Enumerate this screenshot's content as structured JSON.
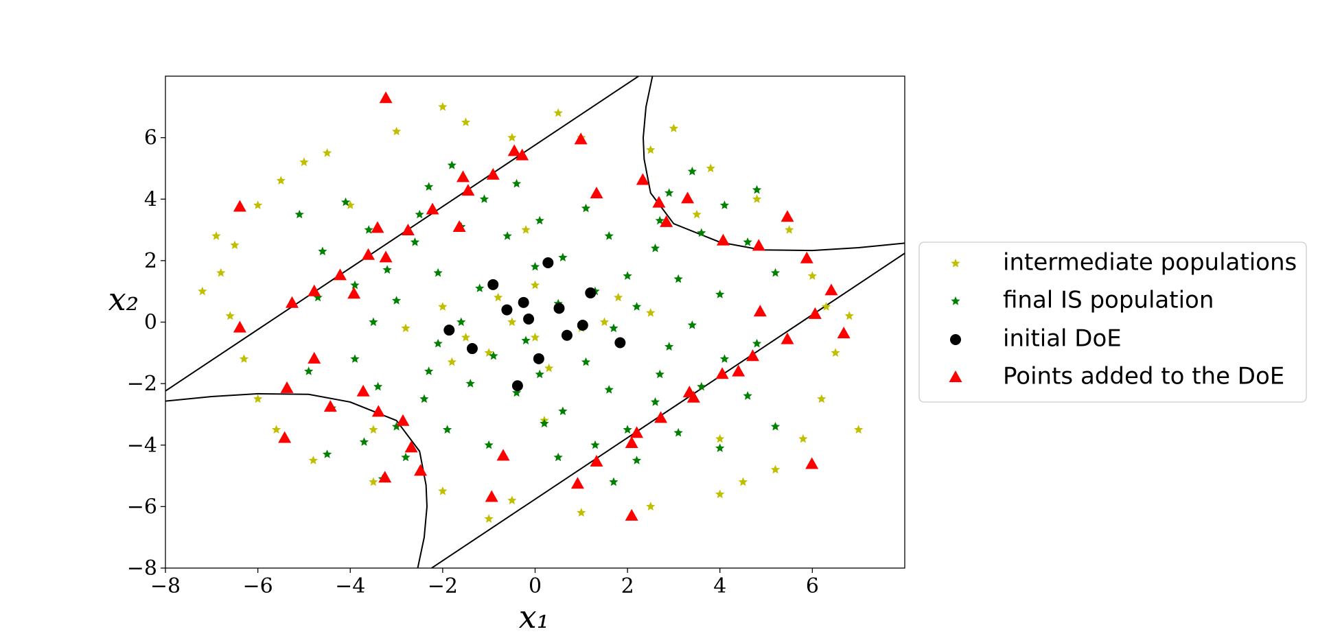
{
  "chart_data": {
    "type": "scatter",
    "xlabel": "x₁",
    "ylabel": "x₂",
    "xlim": [
      -8,
      8
    ],
    "ylim": [
      -8,
      8
    ],
    "xticks": [
      {
        "value": -8,
        "label": "−8"
      },
      {
        "value": -6,
        "label": "−6"
      },
      {
        "value": -4,
        "label": "−4"
      },
      {
        "value": -2,
        "label": "−2"
      },
      0,
      2,
      4,
      6
    ],
    "yticks": [
      {
        "value": -8,
        "label": "−8"
      },
      {
        "value": -6,
        "label": "−6"
      },
      {
        "value": -4,
        "label": "−4"
      },
      {
        "value": -2,
        "label": "−2"
      },
      0,
      2,
      4,
      6
    ],
    "legend": "right",
    "series": [
      {
        "name": "intermediate populations",
        "color": "#bfbf00",
        "marker": "star",
        "x": [
          -6.5,
          -6.8,
          -6.0,
          -5.5,
          -4.5,
          -3.0,
          -1.5,
          -0.5,
          1.0,
          2.5,
          3.8,
          4.8,
          5.5,
          6.0,
          6.3,
          6.5,
          6.2,
          5.8,
          5.2,
          4.0,
          2.5,
          1.0,
          -0.5,
          -2.0,
          -3.5,
          -4.8,
          -5.6,
          -6.0,
          -6.3,
          -6.6,
          -7.2,
          -6.9,
          7.0,
          6.8,
          -5.0,
          3.0,
          -1.0,
          4.5,
          -2.0,
          0.5,
          -1.5,
          -1.0,
          -0.5,
          0.0,
          0.5,
          1.0,
          -2.0,
          1.5,
          -0.8,
          0.3,
          0.0,
          -1.8,
          1.8,
          2.5,
          -2.8,
          -0.2,
          0.2,
          -4.0,
          4.0,
          3.5,
          -3.5
        ],
        "y": [
          2.5,
          1.6,
          3.8,
          4.6,
          5.5,
          6.2,
          6.5,
          6.0,
          6.0,
          5.6,
          5.0,
          4.0,
          3.0,
          1.5,
          0.5,
          -1.0,
          -2.5,
          -3.8,
          -4.8,
          -5.6,
          -6.0,
          -6.2,
          -5.8,
          -5.5,
          -5.2,
          -4.5,
          -3.5,
          -2.5,
          -1.2,
          0.2,
          1.0,
          2.8,
          -3.5,
          0.2,
          5.2,
          6.3,
          -6.4,
          -5.2,
          7.0,
          6.8,
          -0.5,
          -1.0,
          0.0,
          -0.5,
          0.5,
          -0.2,
          0.5,
          0.0,
          0.8,
          -1.5,
          1.2,
          -1.3,
          0.8,
          0.3,
          -0.2,
          3.0,
          -3.2,
          3.8,
          -3.8,
          3.5,
          -3.5
        ]
      },
      {
        "name": "final IS population",
        "color": "#008000",
        "marker": "star",
        "x": [
          -2.6,
          -1.6,
          -3.6,
          -2.1,
          -3.2,
          -0.6,
          -4.6,
          -2.3,
          -3.0,
          -1.1,
          -4.1,
          -1.2,
          -3.9,
          0.0,
          -5.1,
          -1.8,
          -3.5,
          -0.4,
          -4.7,
          -2.5,
          2.6,
          3.6,
          1.6,
          3.1,
          2.0,
          4.6,
          0.6,
          2.9,
          2.2,
          4.1,
          1.1,
          4.0,
          1.3,
          5.2,
          0.1,
          3.4,
          1.7,
          4.8,
          0.5,
          2.7,
          -2.4,
          -1.4,
          -3.4,
          -1.9,
          -3.0,
          -0.4,
          -4.4,
          -2.1,
          -2.8,
          -0.9,
          -3.9,
          -1.0,
          -3.7,
          0.2,
          -4.9,
          -1.6,
          -3.3,
          -0.2,
          -4.5,
          -2.3,
          2.6,
          3.6,
          1.6,
          3.1,
          2.0,
          4.6,
          0.6,
          2.9,
          2.2,
          4.1,
          1.1,
          4.0,
          1.3,
          5.2,
          0.1,
          3.4,
          1.7,
          4.8,
          0.5,
          2.7
        ],
        "y": [
          2.6,
          3.1,
          3.0,
          1.6,
          1.7,
          2.8,
          2.3,
          4.4,
          0.7,
          4.0,
          3.9,
          1.1,
          1.2,
          1.8,
          3.5,
          5.1,
          0.0,
          4.5,
          0.8,
          3.5,
          2.4,
          2.9,
          2.8,
          1.4,
          1.5,
          2.6,
          2.1,
          4.2,
          0.5,
          3.8,
          3.7,
          0.9,
          1.0,
          1.6,
          3.3,
          4.9,
          -0.2,
          4.3,
          0.6,
          3.3,
          -2.5,
          -2.0,
          -2.1,
          -3.5,
          -3.4,
          -2.3,
          -2.8,
          -0.7,
          -4.4,
          -1.1,
          -1.2,
          -4.0,
          -3.9,
          -3.3,
          -1.6,
          0.0,
          -5.1,
          -0.6,
          -4.3,
          -1.6,
          -2.6,
          -2.1,
          -2.2,
          -3.6,
          -3.5,
          -2.4,
          -2.9,
          -0.8,
          -4.5,
          -1.2,
          -1.3,
          -4.1,
          -4.0,
          -3.4,
          -1.7,
          -0.1,
          -5.2,
          -0.7,
          -4.4,
          -1.7
        ]
      },
      {
        "name": "initial DoE",
        "color": "#000000",
        "marker": "circle",
        "x": [
          0.28,
          -0.91,
          -0.25,
          -0.61,
          1.2,
          0.52,
          -0.14,
          1.03,
          -1.86,
          0.69,
          1.84,
          -1.36,
          0.08,
          -0.38
        ],
        "y": [
          1.93,
          1.22,
          0.64,
          0.4,
          0.95,
          0.45,
          0.1,
          -0.1,
          -0.26,
          -0.43,
          -0.67,
          -0.86,
          -1.19,
          -2.07
        ]
      },
      {
        "name": "Points added to the DoE",
        "color": "#ff0000",
        "marker": "triangle",
        "x": [
          -3.23,
          -0.45,
          -0.28,
          0.99,
          -6.39,
          -1.56,
          -0.91,
          -1.45,
          1.33,
          2.33,
          2.68,
          3.3,
          2.84,
          5.46,
          4.07,
          4.84,
          5.88,
          -2.22,
          -3.41,
          -2.75,
          -1.64,
          -3.61,
          -3.23,
          -4.22,
          -3.92,
          -4.78,
          -5.26,
          -6.39,
          6.41,
          6.06,
          4.87,
          6.68,
          5.46,
          4.71,
          4.4,
          4.05,
          3.34,
          3.43,
          -4.78,
          -5.37,
          -3.72,
          -4.43,
          -3.39,
          -2.86,
          2.72,
          2.2,
          2.09,
          -5.42,
          -2.68,
          -0.69,
          1.33,
          -2.48,
          -3.25,
          0.92,
          5.99,
          -0.94,
          2.09
        ],
        "y": [
          7.28,
          5.56,
          5.42,
          5.94,
          3.75,
          4.71,
          4.79,
          4.27,
          4.18,
          4.62,
          3.88,
          4.02,
          3.25,
          3.42,
          2.65,
          2.48,
          2.07,
          3.66,
          3.06,
          2.98,
          3.09,
          2.18,
          2.1,
          1.52,
          0.92,
          1.0,
          0.62,
          -0.18,
          1.03,
          0.26,
          0.34,
          -0.37,
          -0.56,
          -1.11,
          -1.61,
          -1.69,
          -2.29,
          -2.46,
          -1.19,
          -2.15,
          -2.26,
          -2.76,
          -2.92,
          -3.22,
          -3.12,
          -3.61,
          -3.94,
          -3.77,
          -4.08,
          -4.35,
          -4.54,
          -4.84,
          -5.06,
          -5.26,
          -4.62,
          -5.69,
          -6.3
        ]
      }
    ],
    "curves": [
      {
        "color": "#000000",
        "x": [
          -8,
          2.24
        ],
        "y": [
          -2.24,
          8
        ]
      },
      {
        "color": "#000000",
        "x": [
          -2.24,
          8
        ],
        "y": [
          -8,
          2.24
        ]
      },
      {
        "color": "#000000",
        "x": [
          2.54,
          2.4,
          2.34,
          2.36,
          2.5,
          3.0,
          4.0,
          4.9,
          6.0,
          7.0,
          8.0
        ],
        "y": [
          8,
          7,
          6,
          5.3,
          4.2,
          3.2,
          2.6,
          2.35,
          2.33,
          2.42,
          2.57
        ]
      },
      {
        "color": "#000000",
        "x": [
          -2.54,
          -2.4,
          -2.34,
          -2.36,
          -2.5,
          -3.0,
          -4.0,
          -4.9,
          -6.0,
          -7.0,
          -8.0
        ],
        "y": [
          -8,
          -7,
          -6,
          -5.3,
          -4.2,
          -3.2,
          -2.6,
          -2.35,
          -2.33,
          -2.42,
          -2.57
        ]
      }
    ]
  }
}
